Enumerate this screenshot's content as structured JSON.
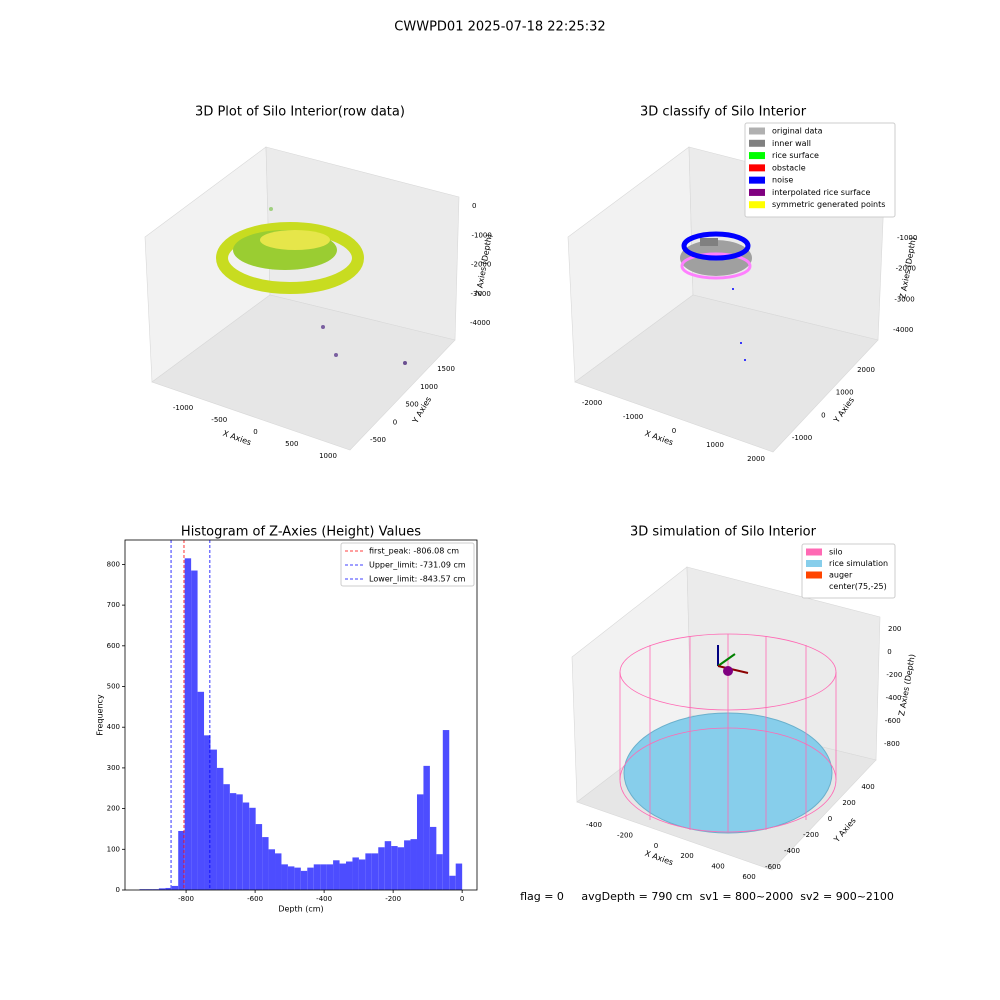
{
  "title": "CWWPD01 2025-07-18 22:25:32",
  "footer": "flag = 0     avgDepth = 790 cm  sv1 = 800~2000  sv2 = 900~2100",
  "chart_data": [
    {
      "type": "scatter3d",
      "title": "3D Plot of Silo Interior(row data)",
      "xlabel": "X Axies",
      "ylabel": "Y Axies",
      "zlabel": "Z Axies (Depth)",
      "xticks": [
        -1000,
        -500,
        0,
        500,
        1000
      ],
      "yticks": [
        -500,
        0,
        500,
        1000,
        1500
      ],
      "zticks": [
        0,
        -1000,
        -2000,
        -3000,
        -4000
      ]
    },
    {
      "type": "scatter3d",
      "title": "3D classify of Silo Interior",
      "xlabel": "X Axies",
      "ylabel": "Y Axies",
      "zlabel": "Z Axies (Depth)",
      "xticks": [
        -2000,
        -1000,
        0,
        1000,
        2000
      ],
      "yticks": [
        -1000,
        0,
        1000,
        2000
      ],
      "zticks": [
        -1000,
        -2000,
        -3000,
        -4000
      ],
      "legend": [
        {
          "name": "original data",
          "color": "#b0b0b0"
        },
        {
          "name": "inner wall",
          "color": "#808080"
        },
        {
          "name": "rice surface",
          "color": "#00ff00"
        },
        {
          "name": "obstacle",
          "color": "#ff0000"
        },
        {
          "name": "noise",
          "color": "#0000ff"
        },
        {
          "name": "interpolated rice surface",
          "color": "#800080"
        },
        {
          "name": "symmetric generated points",
          "color": "#ffff00"
        }
      ]
    },
    {
      "type": "histogram",
      "title": "Histogram of Z-Axies (Height) Values",
      "xlabel": "Depth (cm)",
      "ylabel": "Frequency",
      "color": "#4d4dff",
      "bins": [
        -935,
        -916.3,
        -897.6,
        -878.9,
        -860.2,
        -841.5,
        -822.8,
        -804.1,
        -785.4,
        -766.7,
        -748,
        -729.3,
        -710.6,
        -691.9,
        -673.2,
        -654.5,
        -635.8,
        -617.1,
        -598.4,
        -579.7,
        -561,
        -542.3,
        -523.6,
        -504.9,
        -486.2,
        -467.5,
        -448.8,
        -430.1,
        -411.4,
        -392.7,
        -374,
        -355.3,
        -336.6,
        -317.9,
        -299.2,
        -280.5,
        -261.8,
        -243.1,
        -224.4,
        -205.7,
        -187,
        -168.3,
        -149.6,
        -130.9,
        -112.2,
        -93.5,
        -74.8,
        -56.1,
        -37.4,
        -18.7,
        0
      ],
      "counts": [
        2,
        2,
        2,
        4,
        5,
        10,
        145,
        815,
        785,
        487,
        380,
        345,
        300,
        260,
        238,
        235,
        215,
        202,
        162,
        130,
        100,
        90,
        63,
        58,
        55,
        47,
        55,
        63,
        63,
        63,
        73,
        65,
        70,
        80,
        75,
        90,
        90,
        105,
        120,
        108,
        105,
        122,
        125,
        235,
        305,
        155,
        88,
        393,
        35,
        65
      ],
      "xlim": [
        -977,
        43
      ],
      "ylim": [
        0,
        860
      ],
      "xticks": [
        -800,
        -600,
        -400,
        -200,
        0
      ],
      "yticks": [
        0,
        100,
        200,
        300,
        400,
        500,
        600,
        700,
        800
      ],
      "vlines": [
        {
          "value": -806.08,
          "label": "first_peak: -806.08 cm",
          "color": "#ff0000"
        },
        {
          "value": -731.09,
          "label": "Upper_limit: -731.09 cm",
          "color": "#0000ff"
        },
        {
          "value": -843.57,
          "label": "Lower_limit: -843.57 cm",
          "color": "#0000ff"
        }
      ]
    },
    {
      "type": "surface3d",
      "title": "3D simulation of Silo Interior",
      "xlabel": "X Axies",
      "ylabel": "Y Axies",
      "zlabel": "Z Axies (Depth)",
      "xticks": [
        -400,
        -200,
        0,
        200,
        400,
        600
      ],
      "yticks": [
        -600,
        -400,
        -200,
        0,
        200,
        400
      ],
      "zticks": [
        200,
        0,
        -200,
        -400,
        -600,
        -800
      ],
      "legend": [
        {
          "name": "silo",
          "color": "#ff69b4"
        },
        {
          "name": "rice simulation",
          "color": "#87ceeb"
        },
        {
          "name": "auger",
          "color": "#ff4500"
        },
        {
          "name": "center(75,-25)",
          "color": "#ffffff"
        }
      ]
    }
  ]
}
